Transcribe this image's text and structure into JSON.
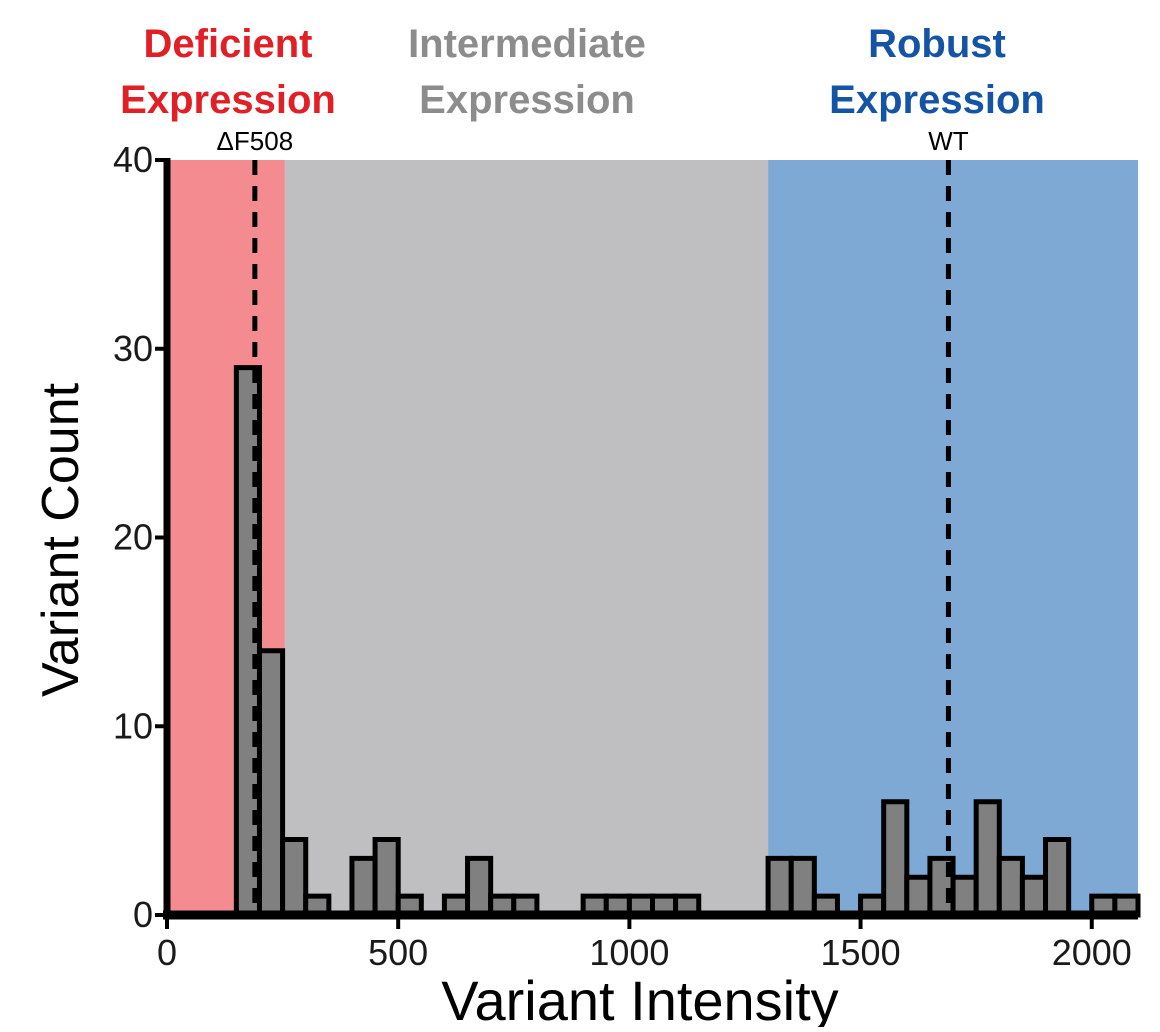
{
  "chart_data": {
    "type": "bar",
    "xlabel": "Variant Intensity",
    "ylabel": "Variant Count",
    "xlim": [
      0,
      2100
    ],
    "ylim": [
      0,
      40
    ],
    "x_ticks": [
      0,
      500,
      1000,
      1500,
      2000
    ],
    "y_ticks": [
      0,
      10,
      20,
      30,
      40
    ],
    "grid": false,
    "bin_width": 50,
    "bins": [
      {
        "x": 175,
        "count": 29
      },
      {
        "x": 225,
        "count": 14
      },
      {
        "x": 275,
        "count": 4
      },
      {
        "x": 325,
        "count": 1
      },
      {
        "x": 425,
        "count": 3
      },
      {
        "x": 475,
        "count": 4
      },
      {
        "x": 525,
        "count": 1
      },
      {
        "x": 625,
        "count": 1
      },
      {
        "x": 675,
        "count": 3
      },
      {
        "x": 725,
        "count": 1
      },
      {
        "x": 775,
        "count": 1
      },
      {
        "x": 925,
        "count": 1
      },
      {
        "x": 975,
        "count": 1
      },
      {
        "x": 1025,
        "count": 1
      },
      {
        "x": 1075,
        "count": 1
      },
      {
        "x": 1125,
        "count": 1
      },
      {
        "x": 1325,
        "count": 3
      },
      {
        "x": 1375,
        "count": 3
      },
      {
        "x": 1425,
        "count": 1
      },
      {
        "x": 1525,
        "count": 1
      },
      {
        "x": 1575,
        "count": 6
      },
      {
        "x": 1625,
        "count": 2
      },
      {
        "x": 1675,
        "count": 3
      },
      {
        "x": 1725,
        "count": 2
      },
      {
        "x": 1775,
        "count": 6
      },
      {
        "x": 1825,
        "count": 3
      },
      {
        "x": 1875,
        "count": 2
      },
      {
        "x": 1925,
        "count": 4
      },
      {
        "x": 2025,
        "count": 1
      },
      {
        "x": 2075,
        "count": 1
      }
    ],
    "regions": [
      {
        "name": "Deficient Expression",
        "line1": "Deficient",
        "line2": "Expression",
        "x_start": 0,
        "x_end": 255,
        "fill": "#f48b90",
        "label_color": "#e02026"
      },
      {
        "name": "Intermediate Expression",
        "line1": "Intermediate",
        "line2": "Expression",
        "x_start": 255,
        "x_end": 1300,
        "fill": "#bfbfc2",
        "label_color": "#8c8c8c"
      },
      {
        "name": "Robust Expression",
        "line1": "Robust",
        "line2": "Expression",
        "x_start": 1300,
        "x_end": 2100,
        "fill": "#7fa9d5",
        "label_color": "#1554a5"
      }
    ],
    "reference_lines": [
      {
        "label": "ΔF508",
        "x": 190
      },
      {
        "label": "WT",
        "x": 1690
      }
    ],
    "bar_color": "#808080",
    "bar_edge_color": "#000000"
  }
}
